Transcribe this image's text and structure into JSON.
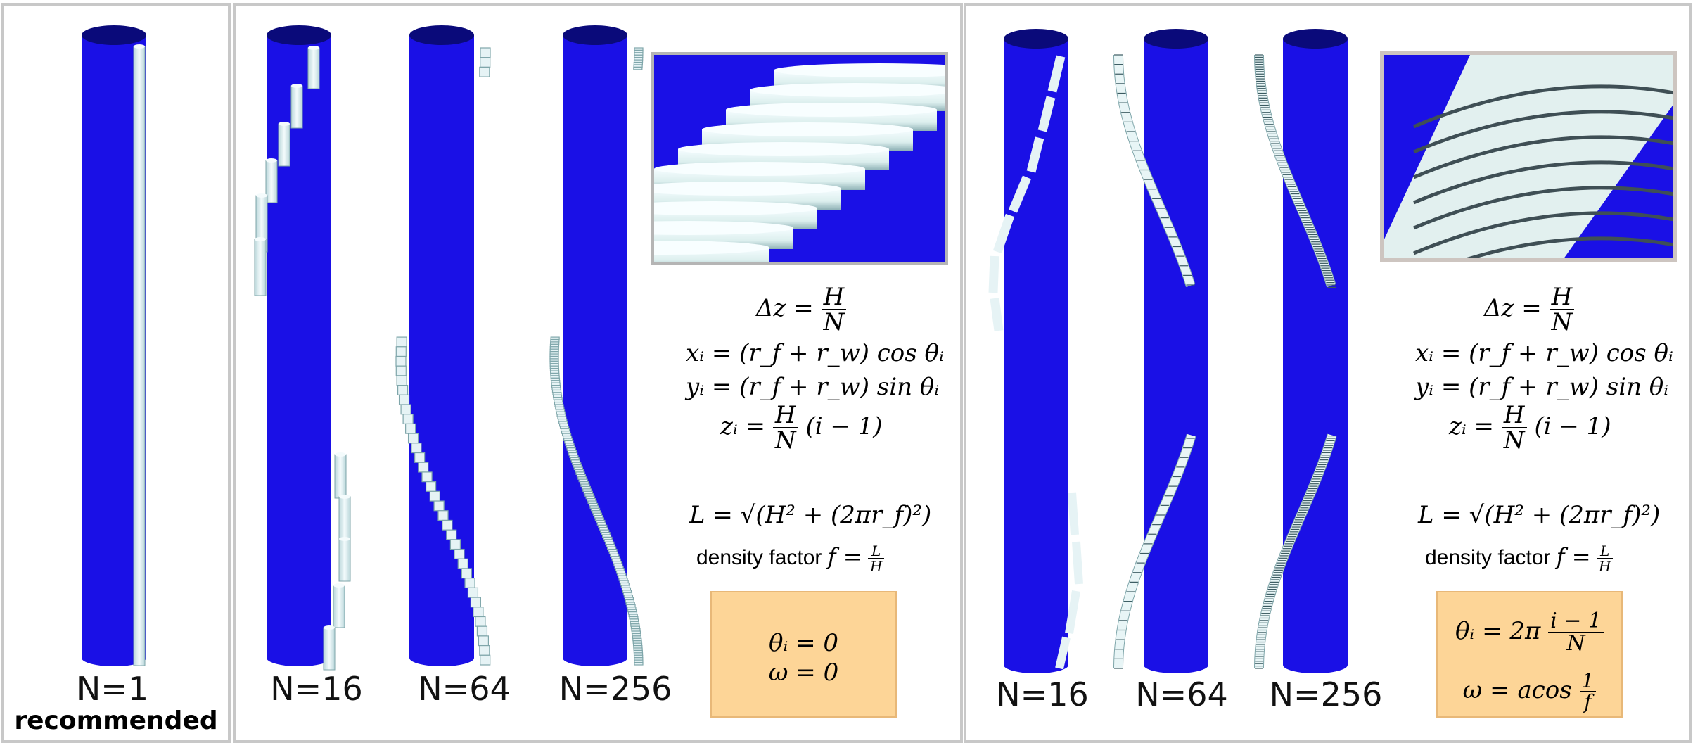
{
  "panels": {
    "single": {
      "label": "N=1",
      "sublabel": "recommended"
    },
    "straight": {
      "labels": [
        "N=16",
        "N=64",
        "N=256"
      ],
      "equations": {
        "dz": "Δz =",
        "dz_num": "H",
        "dz_den": "N",
        "xi": "xᵢ = (r_f + r_w) cos θᵢ",
        "yi": "yᵢ = (r_f + r_w) sin θᵢ",
        "zi_lhs": "zᵢ =",
        "zi_num": "H",
        "zi_den": "N",
        "zi_rhs": "(i − 1)",
        "L": "L = √(H² + (2πr_f)²)",
        "density_text": "density factor",
        "density_lhs": "f =",
        "density_num": "L",
        "density_den": "H"
      },
      "params": {
        "theta": "θᵢ = 0",
        "omega": "ω = 0"
      }
    },
    "helical": {
      "labels": [
        "N=16",
        "N=64",
        "N=256"
      ],
      "equations": {
        "dz": "Δz =",
        "dz_num": "H",
        "dz_den": "N",
        "xi": "xᵢ = (r_f + r_w) cos θᵢ",
        "yi": "yᵢ = (r_f + r_w) sin θᵢ",
        "zi_lhs": "zᵢ =",
        "zi_num": "H",
        "zi_den": "N",
        "zi_rhs": "(i − 1)",
        "L": "L = √(H² + (2πr_f)²)",
        "density_text": "density factor",
        "density_lhs": "f =",
        "density_num": "L",
        "density_den": "H"
      },
      "params": {
        "theta_lhs": "θᵢ = 2π",
        "theta_num": "i − 1",
        "theta_den": "N",
        "omega_lhs": "ω = acos",
        "omega_num": "1",
        "omega_den": "f"
      }
    }
  },
  "colors": {
    "cylinder_blue": "#1a10e6",
    "cylinder_top": "#0a0a7a",
    "wire": "#e4f2f4",
    "panel_border": "#c8c8c8",
    "param_bg": "#fdd597"
  }
}
